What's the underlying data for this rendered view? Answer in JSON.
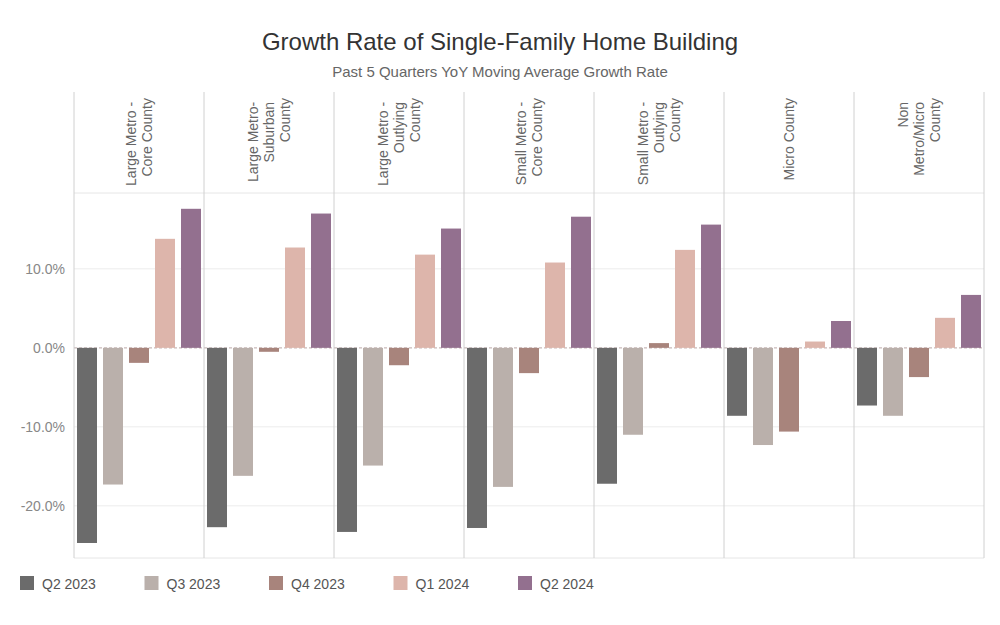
{
  "chart_data": {
    "type": "bar",
    "title": "Growth Rate of Single-Family Home Building",
    "subtitle": "Past 5 Quarters YoY Moving Average Growth Rate",
    "categories": [
      "Large Metro - Core County",
      "Large Metro- Suburban County",
      "Large Metro - Outlying County",
      "Small Metro - Core County",
      "Small Metro - Outlying County",
      "Micro County",
      "Non Metro/Micro County"
    ],
    "series": [
      {
        "name": "Q2 2023",
        "color": "#6b6b6b",
        "values": [
          -24.7,
          -22.7,
          -23.3,
          -22.8,
          -17.2,
          -8.6,
          -7.3
        ]
      },
      {
        "name": "Q3 2023",
        "color": "#bab0ab",
        "values": [
          -17.3,
          -16.2,
          -14.9,
          -17.6,
          -11.0,
          -12.3,
          -8.6
        ]
      },
      {
        "name": "Q4 2023",
        "color": "#a8847c",
        "values": [
          -1.9,
          -0.5,
          -2.2,
          -3.2,
          0.6,
          -10.6,
          -3.7
        ]
      },
      {
        "name": "Q1 2024",
        "color": "#ddb5ab",
        "values": [
          13.8,
          12.7,
          11.8,
          10.8,
          12.4,
          0.8,
          3.8
        ]
      },
      {
        "name": "Q2 2024",
        "color": "#93708f",
        "values": [
          17.6,
          17.0,
          15.1,
          16.6,
          15.6,
          3.4,
          6.7
        ]
      }
    ],
    "ylim": [
      -26.6,
      19.6
    ],
    "yticks": [
      {
        "value": -20,
        "label": "-20.0%"
      },
      {
        "value": -10,
        "label": "-10.0%"
      },
      {
        "value": 0,
        "label": "0.0%"
      },
      {
        "value": 10,
        "label": "10.0%"
      }
    ],
    "grid": true,
    "legend": "bottom"
  }
}
